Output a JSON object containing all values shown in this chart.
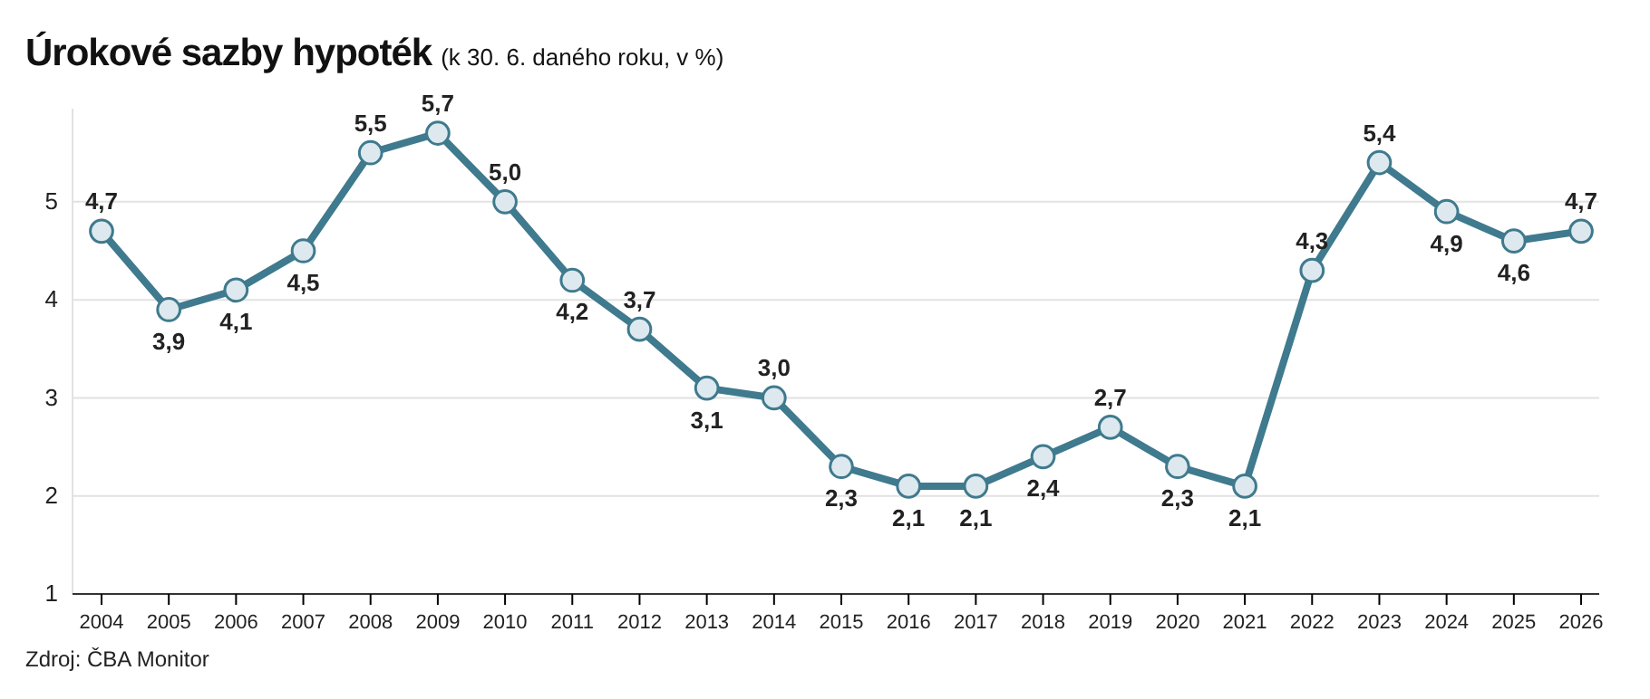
{
  "chart_data": {
    "type": "line",
    "title": "Úrokové sazby hypoték",
    "subtitle": "(k 30. 6. daného roku, v %)",
    "categories": [
      "2004",
      "2005",
      "2006",
      "2007",
      "2008",
      "2009",
      "2010",
      "2011",
      "2012",
      "2013",
      "2014",
      "2015",
      "2016",
      "2017",
      "2018",
      "2019",
      "2020",
      "2021",
      "2022",
      "2023",
      "2024",
      "2025",
      "2026"
    ],
    "series": [
      {
        "color": "#3f7a8e",
        "values": [
          4.7,
          3.9,
          4.1,
          4.5,
          5.5,
          5.7,
          5.0,
          4.2,
          3.7,
          3.1,
          3.0,
          2.3,
          2.1,
          2.1,
          2.4,
          2.7,
          2.3,
          2.1,
          4.3,
          5.4,
          4.9,
          4.6,
          4.7
        ],
        "value_labels": [
          "4,7",
          "3,9",
          "4,1",
          "4,5",
          "5,5",
          "5,7",
          "5,0",
          "4,2",
          "3,7",
          "3,1",
          "3,0",
          "2,3",
          "2,1",
          "2,1",
          "2,4",
          "2,7",
          "2,3",
          "2,1",
          "4,3",
          "5,4",
          "4,9",
          "4,6",
          "4,7"
        ]
      }
    ],
    "ylim": [
      1,
      5.95
    ],
    "yticks": [
      1,
      2,
      3,
      4,
      5
    ],
    "grid": "y",
    "marker": "circle",
    "line_style": "solid",
    "annotations": [
      "Zdroj: ČBA Monitor"
    ]
  }
}
